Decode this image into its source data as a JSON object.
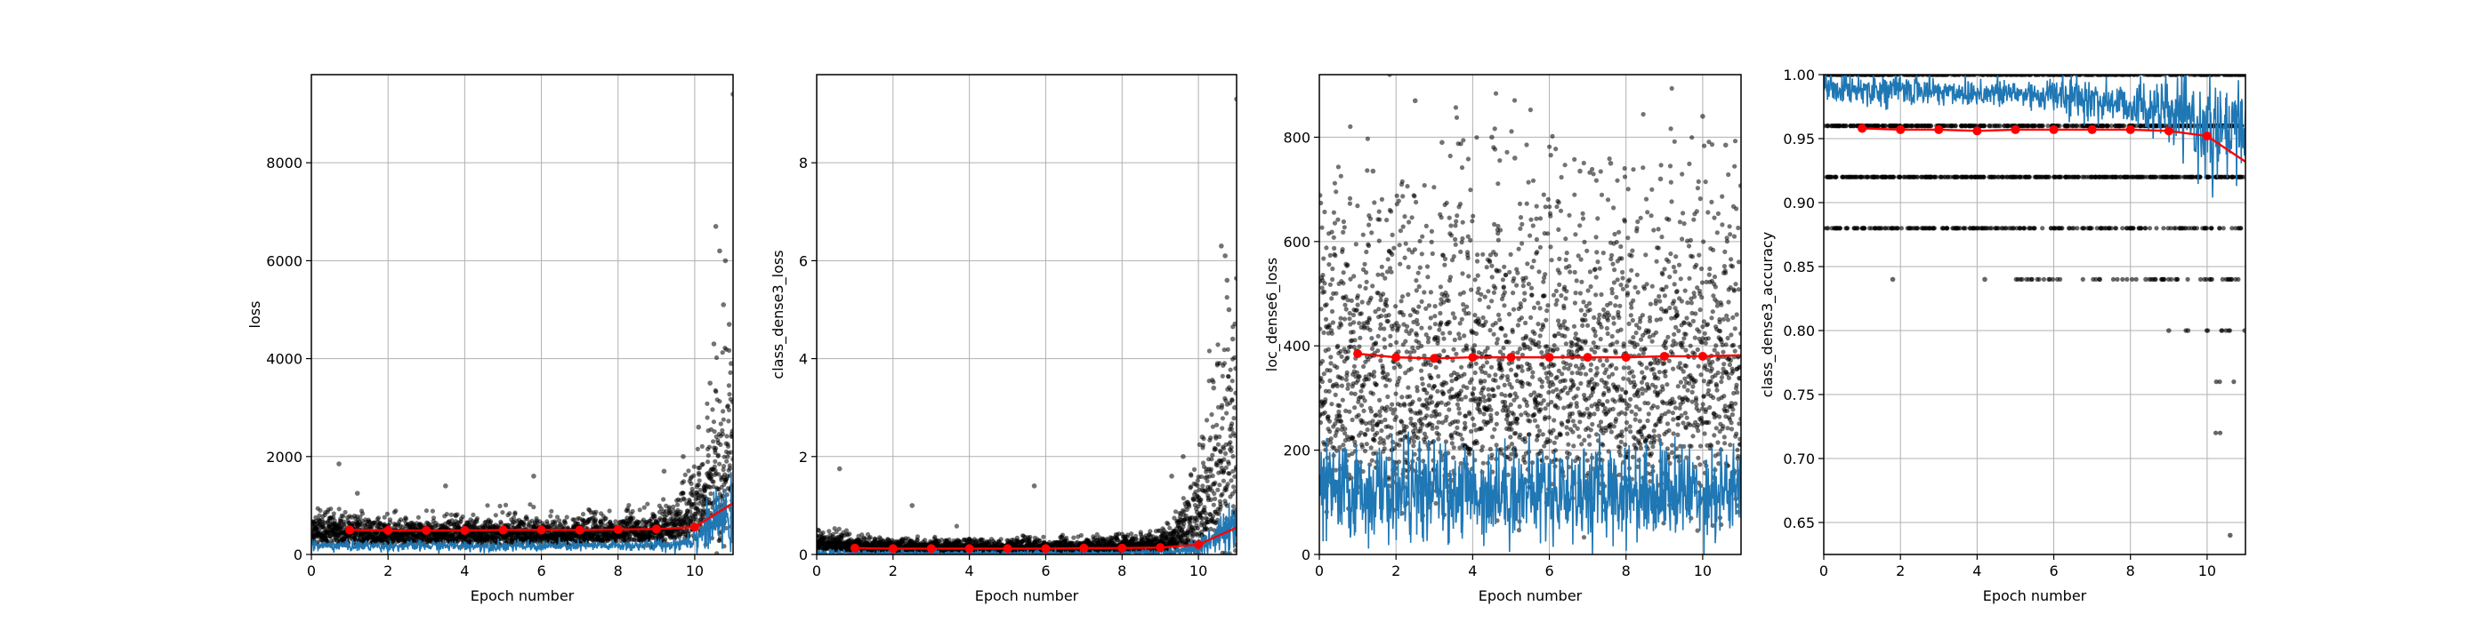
{
  "chart_data": [
    {
      "type": "scatter",
      "xlabel": "Epoch number",
      "ylabel": "loss",
      "xlim": [
        0,
        11
      ],
      "ylim": [
        0,
        9800
      ],
      "xticks": [
        "0",
        "2",
        "4",
        "6",
        "8",
        "10"
      ],
      "yticks": [
        "0",
        "2000",
        "4000",
        "6000",
        "8000"
      ],
      "grid": true,
      "series": [
        {
          "role": "batch-scatter",
          "color": "#000000",
          "profile": {
            "x": [
              0,
              1,
              2,
              3,
              4,
              5,
              6,
              7,
              8,
              9,
              9.5,
              10,
              10.3,
              10.6,
              11
            ],
            "center": [
              380,
              340,
              330,
              340,
              330,
              340,
              340,
              340,
              360,
              380,
              450,
              600,
              850,
              1100,
              1200
            ],
            "spread": [
              240,
              210,
              200,
              200,
              200,
              200,
              200,
              200,
              210,
              230,
              300,
              550,
              900,
              1300,
              1400
            ]
          },
          "outliers": [
            {
              "x": 0.72,
              "y": 1850
            },
            {
              "x": 1.2,
              "y": 1250
            },
            {
              "x": 3.5,
              "y": 1400
            },
            {
              "x": 5.8,
              "y": 1600
            },
            {
              "x": 9.2,
              "y": 1700
            },
            {
              "x": 9.7,
              "y": 2000
            },
            {
              "x": 10.1,
              "y": 2600
            },
            {
              "x": 10.4,
              "y": 3500
            },
            {
              "x": 10.5,
              "y": 4300
            },
            {
              "x": 10.55,
              "y": 6700
            },
            {
              "x": 10.65,
              "y": 6200
            },
            {
              "x": 10.75,
              "y": 5100
            },
            {
              "x": 10.8,
              "y": 6000
            },
            {
              "x": 10.9,
              "y": 4700
            },
            {
              "x": 10.95,
              "y": 3900
            },
            {
              "x": 11.0,
              "y": 9400
            }
          ]
        },
        {
          "role": "batch-line",
          "color": "#1f77b4",
          "profile": {
            "x": [
              0,
              2,
              4,
              6,
              8,
              9.5,
              10,
              10.5,
              11
            ],
            "center": [
              180,
              170,
              175,
              170,
              175,
              200,
              350,
              650,
              750
            ],
            "spread": [
              60,
              55,
              55,
              55,
              55,
              70,
              150,
              250,
              300
            ]
          }
        },
        {
          "role": "epoch-mean",
          "color": "#ff0000",
          "x": [
            1,
            2,
            3,
            4,
            5,
            6,
            7,
            8,
            9,
            10,
            11
          ],
          "y": [
            500,
            490,
            490,
            490,
            500,
            500,
            500,
            510,
            520,
            560,
            1050
          ]
        }
      ]
    },
    {
      "type": "scatter",
      "xlabel": "Epoch number",
      "ylabel": "class_dense3_loss",
      "xlim": [
        0,
        11
      ],
      "ylim": [
        0,
        9.8
      ],
      "xticks": [
        "0",
        "2",
        "4",
        "6",
        "8",
        "10"
      ],
      "yticks": [
        "0",
        "2",
        "4",
        "6",
        "8"
      ],
      "grid": true,
      "series": [
        {
          "role": "batch-scatter",
          "color": "#000000",
          "profile": {
            "x": [
              0,
              1,
              2,
              3,
              4,
              5,
              6,
              7,
              8,
              9,
              9.5,
              10,
              10.3,
              10.6,
              11
            ],
            "center": [
              0.18,
              0.12,
              0.1,
              0.1,
              0.1,
              0.1,
              0.1,
              0.1,
              0.12,
              0.15,
              0.25,
              0.5,
              0.9,
              1.3,
              1.5
            ],
            "spread": [
              0.15,
              0.12,
              0.1,
              0.1,
              0.1,
              0.1,
              0.1,
              0.1,
              0.12,
              0.15,
              0.3,
              0.7,
              1.2,
              1.6,
              1.8
            ]
          },
          "outliers": [
            {
              "x": 0.6,
              "y": 1.75
            },
            {
              "x": 2.5,
              "y": 1.0
            },
            {
              "x": 5.7,
              "y": 1.4
            },
            {
              "x": 9.3,
              "y": 1.6
            },
            {
              "x": 9.6,
              "y": 2.0
            },
            {
              "x": 10.1,
              "y": 2.4
            },
            {
              "x": 10.4,
              "y": 3.4
            },
            {
              "x": 10.5,
              "y": 3.9
            },
            {
              "x": 10.6,
              "y": 6.3
            },
            {
              "x": 10.7,
              "y": 6.1
            },
            {
              "x": 10.75,
              "y": 5.6
            },
            {
              "x": 10.8,
              "y": 5.0
            },
            {
              "x": 10.9,
              "y": 4.4
            },
            {
              "x": 10.95,
              "y": 3.0
            },
            {
              "x": 11.0,
              "y": 9.3
            }
          ]
        },
        {
          "role": "batch-line",
          "color": "#1f77b4",
          "profile": {
            "x": [
              0,
              2,
              4,
              6,
              8,
              9.5,
              10,
              10.5,
              11
            ],
            "center": [
              0.02,
              0.02,
              0.02,
              0.02,
              0.02,
              0.05,
              0.15,
              0.35,
              0.45
            ],
            "spread": [
              0.03,
              0.03,
              0.03,
              0.03,
              0.03,
              0.05,
              0.12,
              0.25,
              0.3
            ]
          }
        },
        {
          "role": "epoch-mean",
          "color": "#ff0000",
          "x": [
            1,
            2,
            3,
            4,
            5,
            6,
            7,
            8,
            9,
            10,
            11
          ],
          "y": [
            0.13,
            0.12,
            0.12,
            0.12,
            0.12,
            0.12,
            0.13,
            0.13,
            0.14,
            0.2,
            0.55
          ]
        }
      ]
    },
    {
      "type": "scatter",
      "xlabel": "Epoch number",
      "ylabel": "loc_dense6_loss",
      "xlim": [
        0,
        11
      ],
      "ylim": [
        0,
        920
      ],
      "xticks": [
        "0",
        "2",
        "4",
        "6",
        "8",
        "10"
      ],
      "yticks": [
        "0",
        "200",
        "400",
        "600",
        "800"
      ],
      "grid": true,
      "series": [
        {
          "role": "batch-scatter",
          "color": "#000000",
          "profile": {
            "x": [
              0,
              11
            ],
            "center": [
              260,
              260
            ],
            "spread": [
              210,
              210
            ]
          },
          "outliers": [
            {
              "x": 2.5,
              "y": 870
            },
            {
              "x": 3.2,
              "y": 790
            },
            {
              "x": 4.5,
              "y": 800
            },
            {
              "x": 5.1,
              "y": 760
            },
            {
              "x": 6.8,
              "y": 735
            },
            {
              "x": 7.6,
              "y": 750
            },
            {
              "x": 10.0,
              "y": 840
            },
            {
              "x": 10.6,
              "y": 785
            },
            {
              "x": 1.4,
              "y": 735
            },
            {
              "x": 8.9,
              "y": 720
            }
          ]
        },
        {
          "role": "batch-line",
          "color": "#1f77b4",
          "profile": {
            "x": [
              0,
              11
            ],
            "center": [
              120,
              120
            ],
            "spread": [
              45,
              45
            ]
          }
        },
        {
          "role": "epoch-mean",
          "color": "#ff0000",
          "x": [
            1,
            2,
            3,
            4,
            5,
            6,
            7,
            8,
            9,
            10,
            11
          ],
          "y": [
            385,
            378,
            376,
            378,
            378,
            378,
            378,
            378,
            380,
            380,
            382
          ]
        }
      ]
    },
    {
      "type": "scatter",
      "xlabel": "Epoch number",
      "ylabel": "class_dense3_accuracy",
      "xlim": [
        0,
        11
      ],
      "ylim": [
        0.625,
        1.0
      ],
      "xticks": [
        "0",
        "2",
        "4",
        "6",
        "8",
        "10"
      ],
      "yticks": [
        "0.65",
        "0.70",
        "0.75",
        "0.80",
        "0.85",
        "0.90",
        "0.95",
        "1.00"
      ],
      "grid": true,
      "series": [
        {
          "role": "batch-levels",
          "color": "#000000",
          "levels": [
            {
              "y": 1.0,
              "density": 1.0,
              "xmin": 0,
              "xmax": 11
            },
            {
              "y": 0.96,
              "density": 1.0,
              "xmin": 0,
              "xmax": 11
            },
            {
              "y": 0.92,
              "density": 0.95,
              "xmin": 0,
              "xmax": 11
            },
            {
              "y": 0.88,
              "density": 0.55,
              "xmin": 0,
              "xmax": 11
            },
            {
              "y": 0.84,
              "density": 0.25,
              "xmin": 5,
              "xmax": 11
            },
            {
              "y": 0.8,
              "density": 0.12,
              "xmin": 9,
              "xmax": 11
            },
            {
              "y": 0.76,
              "density": 0.08,
              "xmin": 10,
              "xmax": 11
            },
            {
              "y": 0.72,
              "density": 0.05,
              "xmin": 10.2,
              "xmax": 11
            }
          ],
          "outliers": [
            {
              "x": 1.8,
              "y": 0.84
            },
            {
              "x": 4.2,
              "y": 0.84
            },
            {
              "x": 7.2,
              "y": 0.84
            },
            {
              "x": 8.4,
              "y": 0.84
            },
            {
              "x": 9.0,
              "y": 0.8
            },
            {
              "x": 9.5,
              "y": 0.8
            },
            {
              "x": 10.6,
              "y": 0.64
            }
          ]
        },
        {
          "role": "batch-line",
          "color": "#1f77b4",
          "profile": {
            "x": [
              0,
              2,
              4,
              6,
              7,
              8,
              9,
              9.5,
              10,
              10.5,
              11
            ],
            "center": [
              0.99,
              0.988,
              0.986,
              0.984,
              0.98,
              0.977,
              0.97,
              0.965,
              0.955,
              0.95,
              0.96
            ],
            "spread": [
              0.006,
              0.006,
              0.006,
              0.007,
              0.008,
              0.009,
              0.012,
              0.014,
              0.018,
              0.02,
              0.02
            ]
          }
        },
        {
          "role": "epoch-mean",
          "color": "#ff0000",
          "x": [
            1,
            2,
            3,
            4,
            5,
            6,
            7,
            8,
            9,
            10,
            11
          ],
          "y": [
            0.958,
            0.957,
            0.957,
            0.956,
            0.957,
            0.957,
            0.957,
            0.957,
            0.956,
            0.952,
            0.932
          ]
        }
      ]
    }
  ]
}
